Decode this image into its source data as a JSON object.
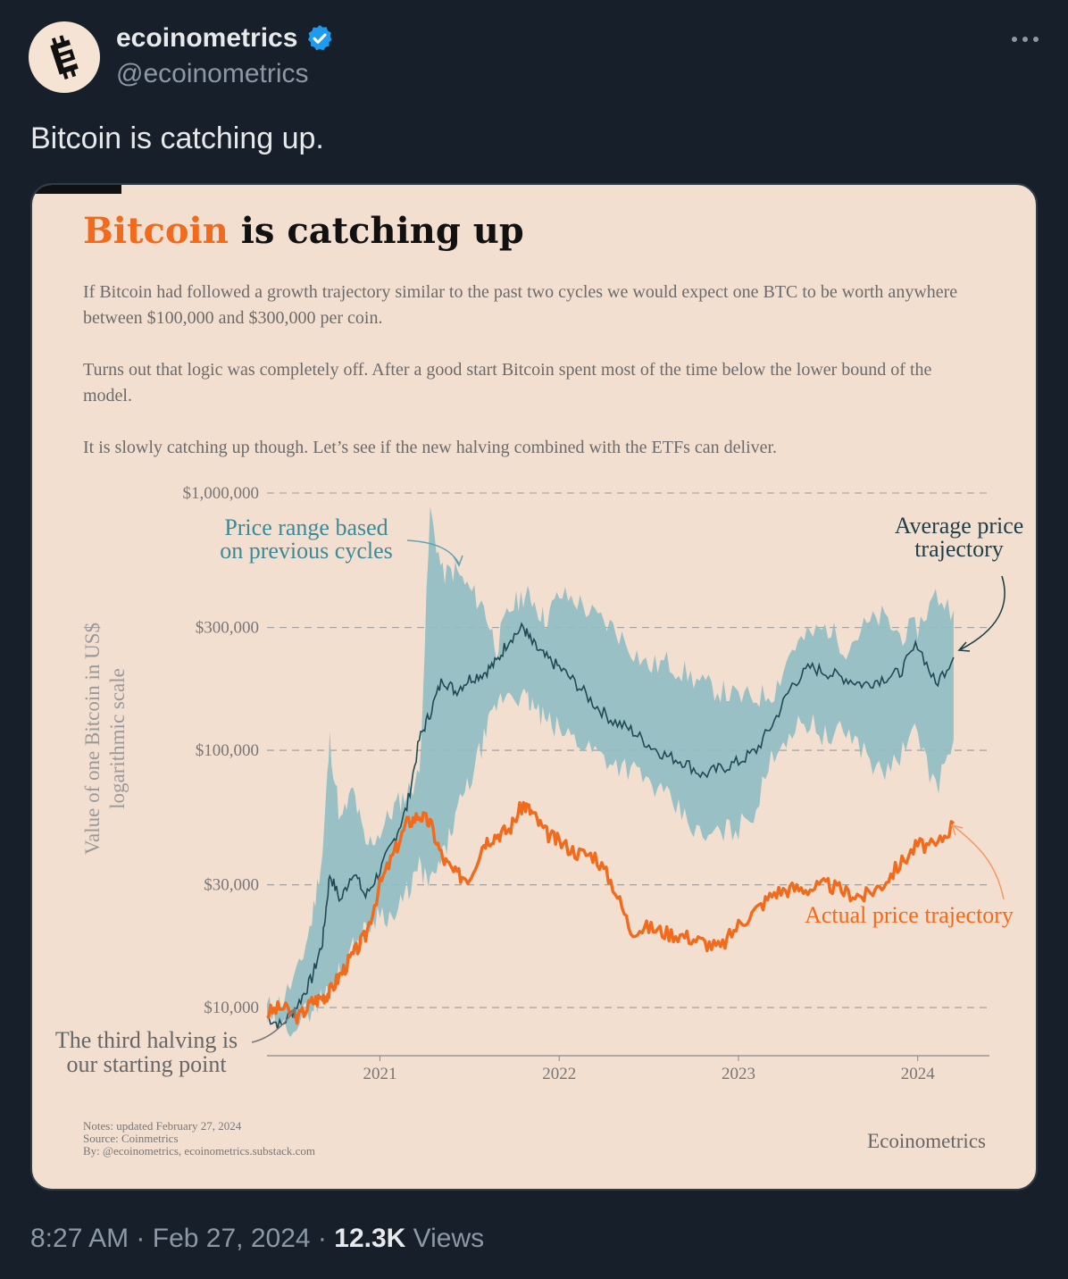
{
  "tweet": {
    "display_name": "ecoinometrics",
    "handle": "@ecoinometrics",
    "text": "Bitcoin is catching up.",
    "time": "8:27 AM",
    "date": "Feb 27, 2024",
    "views_count": "12.3K",
    "views_label": "Views",
    "separator": "·"
  },
  "icons": {
    "avatar": "ecoinometrics-logo",
    "verified": "verified-badge-icon",
    "more": "more-options-icon"
  },
  "colors": {
    "background": "#17202a",
    "card": "#f2dfd0",
    "bitcoin_orange": "#f26a1b",
    "range_fill": "#8fbcc3",
    "avg_line": "#1f4a55",
    "verified": "#1d9bf0"
  },
  "chart_card": {
    "title_highlight": "Bitcoin",
    "title_rest": " is catching up",
    "paragraphs": [
      "If Bitcoin had followed a growth trajectory similar to the past two cycles we would expect one BTC to be worth anywhere between $100,000 and $300,000 per coin.",
      "Turns out that logic was completely off. After a good start Bitcoin spent most of the time below the lower bound of the model.",
      "It is slowly catching up though. Let’s see if the new halving combined with the ETFs can deliver."
    ],
    "notes": [
      "Notes: updated February 27, 2024",
      "Source: Coinmetrics",
      "By: @ecoinometrics, ecoinometrics.substack.com"
    ],
    "brand": "Ecoinometrics"
  },
  "chart_data": {
    "type": "line",
    "title": "Bitcoin is catching up",
    "ylabel": "Value of one Bitcoin in US$ logarithmic scale",
    "ylabel_lines": [
      "Value of one Bitcoin in US$",
      "logarithmic scale"
    ],
    "yscale": "log",
    "ylim": [
      6500,
      1000000
    ],
    "xlim": [
      2020.37,
      2024.4
    ],
    "yticks": [
      {
        "value": 10000,
        "label": "$10,000"
      },
      {
        "value": 30000,
        "label": "$30,000"
      },
      {
        "value": 100000,
        "label": "$100,000"
      },
      {
        "value": 300000,
        "label": "$300,000"
      },
      {
        "value": 1000000,
        "label": "$1,000,000"
      }
    ],
    "xticks": [
      {
        "value": 2021.0,
        "label": "2021"
      },
      {
        "value": 2022.0,
        "label": "2022"
      },
      {
        "value": 2023.0,
        "label": "2023"
      },
      {
        "value": 2024.0,
        "label": "2024"
      }
    ],
    "annotations": {
      "range": [
        "Price range based",
        "on previous cycles"
      ],
      "average": [
        "Average price",
        "trajectory"
      ],
      "actual": "Actual price trajectory",
      "halving": [
        "The third halving is",
        "our starting point"
      ]
    },
    "series": [
      {
        "name": "Price range upper",
        "x": [
          2020.37,
          2020.45,
          2020.55,
          2020.62,
          2020.68,
          2020.72,
          2020.78,
          2020.85,
          2020.92,
          2021.0,
          2021.08,
          2021.15,
          2021.22,
          2021.28,
          2021.35,
          2021.42,
          2021.5,
          2021.58,
          2021.65,
          2021.72,
          2021.8,
          2021.85,
          2021.92,
          2022.0,
          2022.1,
          2022.2,
          2022.3,
          2022.4,
          2022.5,
          2022.6,
          2022.7,
          2022.8,
          2022.9,
          2023.0,
          2023.1,
          2023.2,
          2023.3,
          2023.4,
          2023.5,
          2023.6,
          2023.7,
          2023.8,
          2023.9,
          2024.0,
          2024.1,
          2024.2
        ],
        "values": [
          10000,
          10500,
          14000,
          22000,
          40000,
          110000,
          52000,
          70000,
          42000,
          48000,
          60000,
          68000,
          80000,
          850000,
          480000,
          500000,
          420000,
          360000,
          250000,
          350000,
          400000,
          390000,
          320000,
          400000,
          380000,
          330000,
          300000,
          250000,
          210000,
          220000,
          200000,
          180000,
          170000,
          160000,
          160000,
          170000,
          250000,
          280000,
          300000,
          250000,
          300000,
          330000,
          280000,
          300000,
          400000,
          350000
        ]
      },
      {
        "name": "Price range lower",
        "x": [
          2020.37,
          2020.45,
          2020.55,
          2020.62,
          2020.68,
          2020.72,
          2020.78,
          2020.85,
          2020.92,
          2021.0,
          2021.08,
          2021.15,
          2021.22,
          2021.28,
          2021.35,
          2021.42,
          2021.5,
          2021.58,
          2021.65,
          2021.72,
          2021.8,
          2021.85,
          2021.92,
          2022.0,
          2022.1,
          2022.2,
          2022.3,
          2022.4,
          2022.5,
          2022.6,
          2022.7,
          2022.8,
          2022.9,
          2023.0,
          2023.1,
          2023.2,
          2023.3,
          2023.4,
          2023.5,
          2023.6,
          2023.7,
          2023.8,
          2023.9,
          2024.0,
          2024.1,
          2024.2
        ],
        "values": [
          9000,
          8200,
          9000,
          10000,
          11000,
          12000,
          14000,
          17000,
          20000,
          24000,
          22000,
          28000,
          35000,
          30000,
          38000,
          55000,
          75000,
          110000,
          150000,
          170000,
          160000,
          150000,
          130000,
          120000,
          110000,
          100000,
          90000,
          85000,
          75000,
          65000,
          55000,
          45000,
          48000,
          50000,
          60000,
          100000,
          120000,
          130000,
          110000,
          120000,
          100000,
          80000,
          95000,
          120000,
          70000,
          110000
        ]
      },
      {
        "name": "Average price trajectory",
        "x": [
          2020.37,
          2020.45,
          2020.55,
          2020.62,
          2020.68,
          2020.72,
          2020.78,
          2020.85,
          2020.92,
          2021.0,
          2021.08,
          2021.15,
          2021.22,
          2021.28,
          2021.35,
          2021.42,
          2021.5,
          2021.58,
          2021.65,
          2021.72,
          2021.8,
          2021.85,
          2021.92,
          2022.0,
          2022.1,
          2022.2,
          2022.3,
          2022.4,
          2022.5,
          2022.6,
          2022.7,
          2022.8,
          2022.9,
          2023.0,
          2023.1,
          2023.2,
          2023.3,
          2023.4,
          2023.5,
          2023.6,
          2023.7,
          2023.8,
          2023.9,
          2024.0,
          2024.1,
          2024.2
        ],
        "values": [
          9200,
          8500,
          10500,
          13000,
          18000,
          33000,
          26000,
          34000,
          27000,
          34000,
          45000,
          60000,
          110000,
          140000,
          190000,
          170000,
          190000,
          200000,
          220000,
          270000,
          300000,
          260000,
          230000,
          210000,
          180000,
          150000,
          130000,
          120000,
          105000,
          95000,
          90000,
          80000,
          85000,
          90000,
          100000,
          130000,
          180000,
          210000,
          200000,
          190000,
          180000,
          190000,
          200000,
          260000,
          180000,
          230000
        ]
      },
      {
        "name": "Actual price trajectory",
        "x": [
          2020.37,
          2020.45,
          2020.55,
          2020.62,
          2020.68,
          2020.72,
          2020.78,
          2020.85,
          2020.92,
          2021.0,
          2021.08,
          2021.15,
          2021.22,
          2021.28,
          2021.35,
          2021.42,
          2021.5,
          2021.58,
          2021.65,
          2021.72,
          2021.8,
          2021.85,
          2021.92,
          2022.0,
          2022.1,
          2022.2,
          2022.3,
          2022.4,
          2022.5,
          2022.6,
          2022.7,
          2022.8,
          2022.9,
          2023.0,
          2023.1,
          2023.2,
          2023.3,
          2023.4,
          2023.5,
          2023.6,
          2023.7,
          2023.8,
          2023.9,
          2024.0,
          2024.1,
          2024.2
        ],
        "values": [
          9500,
          10000,
          9200,
          10500,
          11000,
          11500,
          13500,
          16000,
          19000,
          30000,
          40000,
          52000,
          56000,
          52000,
          38000,
          33000,
          32000,
          44000,
          47000,
          49000,
          62000,
          57000,
          48000,
          44000,
          40000,
          39000,
          30000,
          20000,
          20500,
          19500,
          19000,
          18000,
          17000,
          21000,
          24000,
          28000,
          29000,
          29000,
          30000,
          28000,
          27000,
          30000,
          36000,
          43000,
          42000,
          52000
        ]
      }
    ]
  }
}
